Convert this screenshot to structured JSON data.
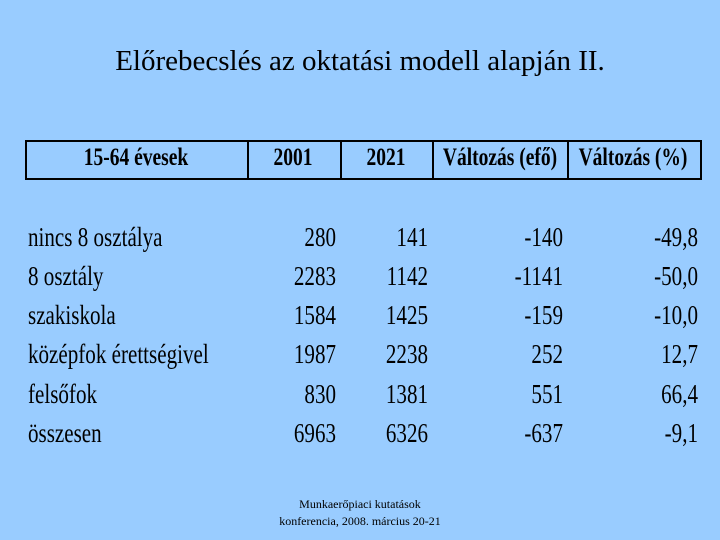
{
  "title": "Előrebecslés az oktatási modell alapján II.",
  "table": {
    "header": [
      "15-64 évesek",
      "2001",
      "2021",
      "Változás (efő)",
      "Változás (%)"
    ],
    "rows": [
      [
        "nincs 8 osztálya",
        "280",
        "141",
        "-140",
        "-49,8"
      ],
      [
        "8 osztály",
        "2283",
        "1142",
        "-1141",
        "-50,0"
      ],
      [
        "szakiskola",
        "1584",
        "1425",
        "-159",
        "-10,0"
      ],
      [
        "középfok érettségivel",
        "1987",
        "2238",
        "252",
        "12,7"
      ],
      [
        "felsőfok",
        "830",
        "1381",
        "551",
        "66,4"
      ],
      [
        "összesen",
        "6963",
        "6326",
        "-637",
        "-9,1"
      ]
    ]
  },
  "footer": [
    "Munkaerőpiaci kutatások",
    "konferencia, 2008. március 20-21"
  ]
}
